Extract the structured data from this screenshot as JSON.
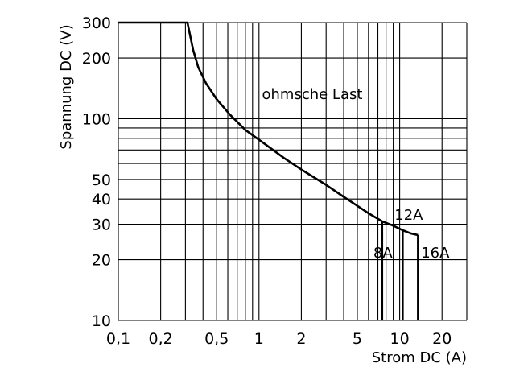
{
  "chart_data": {
    "type": "line",
    "title": "",
    "xlabel": "Strom DC (A)",
    "ylabel": "Spannung DC (V)",
    "x_scale": "log",
    "y_scale": "log",
    "xlim": [
      0.1,
      30
    ],
    "ylim": [
      10,
      300
    ],
    "grid": true,
    "x_grid_values": [
      0.1,
      0.2,
      0.3,
      0.4,
      0.5,
      0.6,
      0.7,
      0.8,
      0.9,
      1,
      2,
      3,
      4,
      5,
      6,
      7,
      8,
      9,
      10,
      20,
      30
    ],
    "y_grid_values": [
      10,
      20,
      30,
      40,
      50,
      60,
      70,
      80,
      90,
      100,
      200,
      300
    ],
    "x_ticks": [
      {
        "value": 0.1,
        "label": "0,1"
      },
      {
        "value": 0.2,
        "label": "0,2"
      },
      {
        "value": 0.5,
        "label": "0,5"
      },
      {
        "value": 1,
        "label": "1"
      },
      {
        "value": 2,
        "label": "2"
      },
      {
        "value": 5,
        "label": "5"
      },
      {
        "value": 10,
        "label": "10"
      },
      {
        "value": 20,
        "label": "20"
      }
    ],
    "y_ticks": [
      {
        "value": 10,
        "label": "10"
      },
      {
        "value": 20,
        "label": "20"
      },
      {
        "value": 30,
        "label": "30"
      },
      {
        "value": 40,
        "label": "40"
      },
      {
        "value": 50,
        "label": "50"
      },
      {
        "value": 100,
        "label": "100"
      },
      {
        "value": 200,
        "label": "200"
      },
      {
        "value": 300,
        "label": "300"
      }
    ],
    "series": [
      {
        "x": [
          0.1,
          0.31,
          0.32,
          0.34,
          0.37,
          0.42,
          0.5,
          0.62,
          0.8,
          1.1,
          1.5,
          2,
          3,
          4,
          5,
          6,
          7.5,
          9,
          10.5,
          12,
          13.5
        ],
        "y": [
          300,
          300,
          270,
          220,
          180,
          150,
          125,
          105,
          88,
          75,
          64,
          56,
          47,
          41,
          37,
          34,
          31,
          29.5,
          28,
          27,
          26.5
        ]
      },
      {
        "name": "8A",
        "x": [
          7.5,
          7.5
        ],
        "y": [
          31,
          10
        ]
      },
      {
        "name": "12A",
        "x": [
          10.5,
          10.5
        ],
        "y": [
          28,
          10
        ]
      },
      {
        "name": "16A",
        "x": [
          13.5,
          13.5
        ],
        "y": [
          26.5,
          10
        ]
      }
    ],
    "annotations": [
      {
        "text": "ohmsche Last",
        "x": 1.05,
        "y": 125
      },
      {
        "text": "12A",
        "x": 9.2,
        "y": 31.5
      },
      {
        "text": "8A",
        "x": 6.5,
        "y": 20.5
      },
      {
        "text": "16A",
        "x": 14.2,
        "y": 20.5
      }
    ],
    "line_color": "#000000",
    "grid_color": "#000000"
  }
}
